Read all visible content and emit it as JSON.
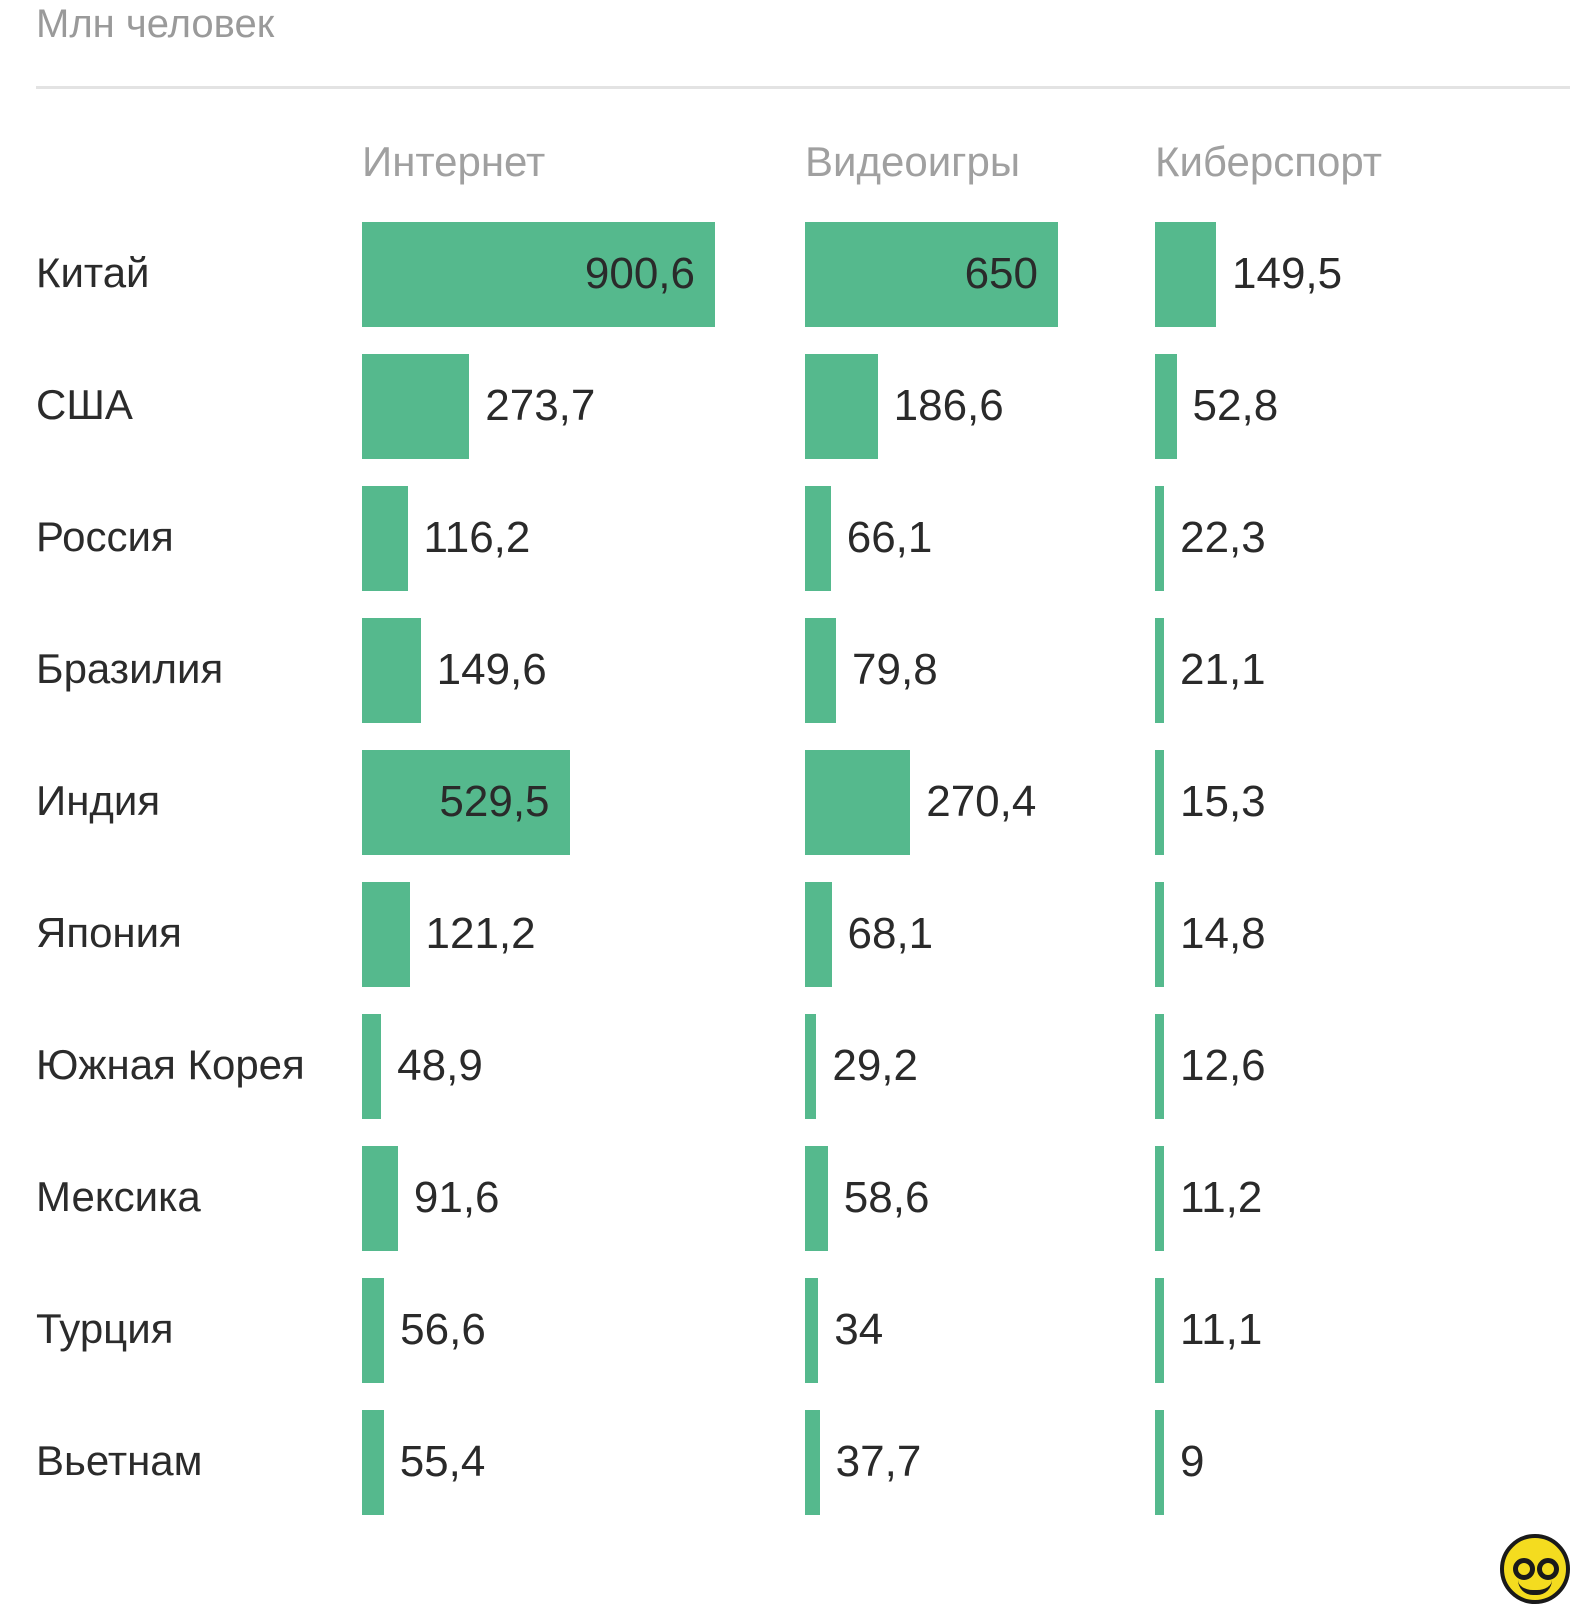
{
  "chart_data": {
    "type": "bar",
    "orientation": "horizontal",
    "title": "",
    "unit_label": "Млн человек",
    "categories": [
      "Китай",
      "США",
      "Россия",
      "Бразилия",
      "Индия",
      "Япония",
      "Южная Корея",
      "Мексика",
      "Турция",
      "Вьетнам"
    ],
    "series": [
      {
        "name": "Интернет",
        "values": [
          900.6,
          273.7,
          116.2,
          149.6,
          529.5,
          121.2,
          48.9,
          91.6,
          56.6,
          55.4
        ],
        "labels": [
          "900,6",
          "273,7",
          "116,2",
          "149,6",
          "529,5",
          "121,2",
          "48,9",
          "91,6",
          "56,6",
          "55,4"
        ]
      },
      {
        "name": "Видеоигры",
        "values": [
          650,
          186.6,
          66.1,
          79.8,
          270.4,
          68.1,
          29.2,
          58.6,
          34,
          37.7
        ],
        "labels": [
          "650",
          "186,6",
          "66,1",
          "79,8",
          "270,4",
          "68,1",
          "29,2",
          "58,6",
          "34",
          "37,7"
        ]
      },
      {
        "name": "Киберспорт",
        "values": [
          149.5,
          52.8,
          22.3,
          21.1,
          15.3,
          14.8,
          12.6,
          11.2,
          11.1,
          9
        ],
        "labels": [
          "149,5",
          "52,8",
          "22,3",
          "21,1",
          "15,3",
          "14,8",
          "12,6",
          "11,2",
          "11,1",
          "9"
        ]
      }
    ],
    "grid": false,
    "legend": "none",
    "bar_color": "#55b98d"
  }
}
